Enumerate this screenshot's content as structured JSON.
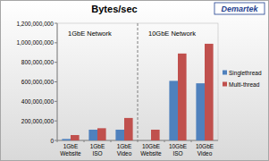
{
  "chart_data": {
    "type": "bar",
    "title": "Bytes/sec",
    "logo": "Demartek",
    "annotations": [
      "1GbE Network",
      "10GbE Network"
    ],
    "categories": [
      "1GbE Website",
      "1GbE ISO",
      "1GbE Video",
      "10GbE Website",
      "10GbE ISO",
      "10GbE Video"
    ],
    "series": [
      {
        "name": "Singlethread",
        "color": "#4f81bd",
        "values": [
          15000000,
          110000000,
          110000000,
          null,
          610000000,
          585000000
        ]
      },
      {
        "name": "Multi-thread",
        "color": "#c0504d",
        "values": [
          55000000,
          125000000,
          230000000,
          110000000,
          890000000,
          990000000
        ]
      }
    ],
    "ylim": [
      0,
      1200000000
    ],
    "yticks": [
      0,
      {
        "value": 200000000,
        "label": "200,000,000"
      },
      {
        "value": 400000000,
        "label": "400,000,000"
      },
      {
        "value": 600000000,
        "label": "600,000,000"
      },
      {
        "value": 800000000,
        "label": "800,000,000"
      },
      {
        "value": 1000000000,
        "label": "1,000,000,000"
      },
      {
        "value": 1200000000,
        "label": "1,200,000,000"
      }
    ],
    "grid": false,
    "legend": "right"
  }
}
